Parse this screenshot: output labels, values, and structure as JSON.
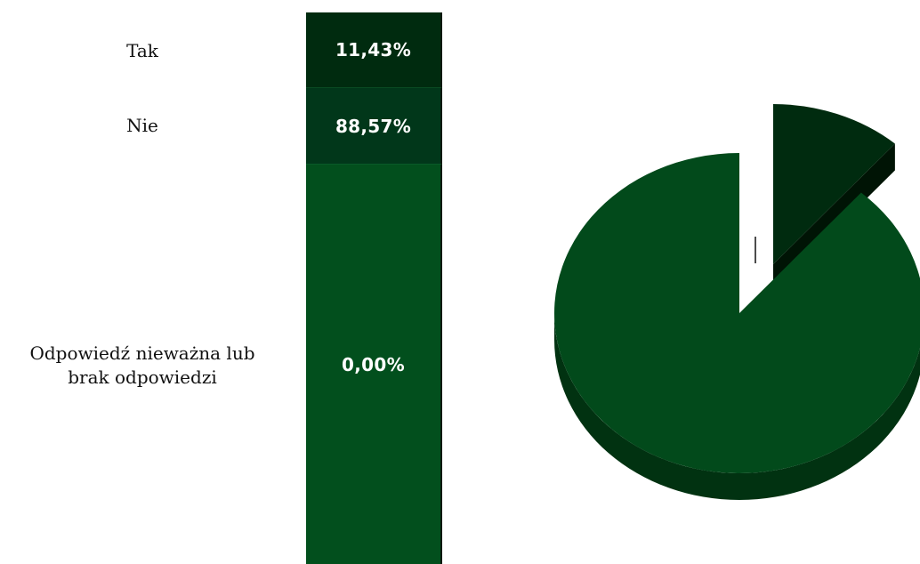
{
  "chart_data": {
    "type": "pie",
    "categories": [
      "Tak",
      "Nie",
      "Odpowiedź nieważna lub brak odpowiedzi"
    ],
    "values": [
      11.43,
      88.57,
      0.0
    ],
    "value_labels": [
      "11,43%",
      "88,57%",
      "0,00%"
    ],
    "colors": [
      "#002b0f",
      "#01371a",
      "#024f1d"
    ],
    "pie_colors": {
      "slice_top": [
        "#002b0f",
        "#024a1b"
      ],
      "slice_side": [
        "#001405",
        "#013211"
      ]
    },
    "exploded": true
  },
  "rows": [
    {
      "label_lines": [
        "Tak"
      ],
      "value": "11,43%"
    },
    {
      "label_lines": [
        "Nie"
      ],
      "value": "88,57%"
    },
    {
      "label_lines": [
        "Odpowiedź nieważna lub",
        "brak odpowiedzi"
      ],
      "value": "0,00%"
    }
  ]
}
